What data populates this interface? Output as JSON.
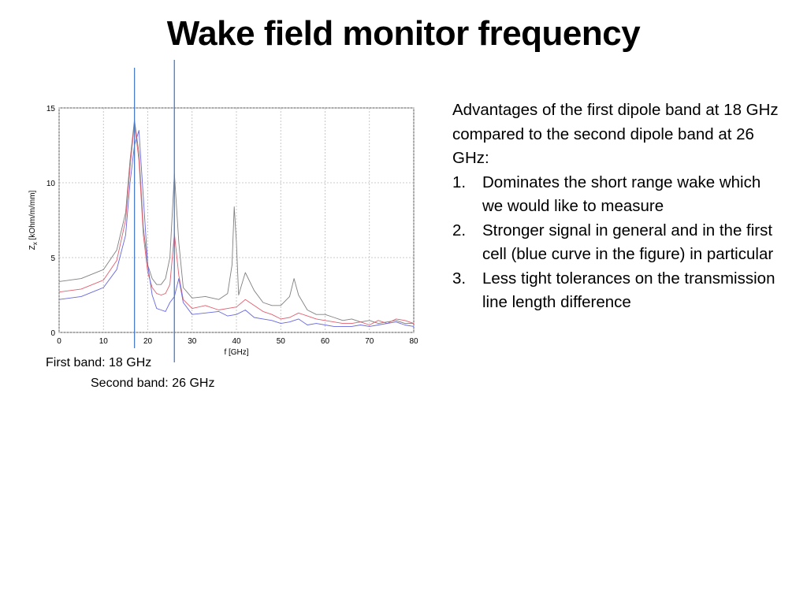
{
  "slide": {
    "title": "Wake field monitor frequency",
    "first_band_label": "First band: 18 GHz",
    "second_band_label": "Second band: 26 GHz",
    "intro": "Advantages of the first dipole band at 18 GHz compared to the second dipole band at 26 GHz:",
    "points": [
      {
        "num": "1.",
        "text": "Dominates the short range wake which we would like to measure"
      },
      {
        "num": "2.",
        "text": "Stronger signal in general and in the first cell (blue curve in the figure) in particular"
      },
      {
        "num": "3.",
        "text": "Less tight tolerances on the transmission line length difference"
      }
    ]
  },
  "chart_data": {
    "type": "line",
    "xlabel": "f [GHz]",
    "ylabel_main": "Z",
    "ylabel_sub": "x",
    "ylabel_unit": " [kOhm/m/mm]",
    "xlim": [
      0,
      80
    ],
    "ylim": [
      0,
      15
    ],
    "xticks": [
      0,
      10,
      20,
      30,
      40,
      50,
      60,
      70,
      80
    ],
    "yticks": [
      0,
      5,
      10,
      15
    ],
    "grid": true,
    "marker_lines": [
      {
        "x": 17,
        "color": "#4a7cc7"
      },
      {
        "x": 26,
        "color": "#4a7cc7"
      }
    ],
    "series": [
      {
        "color": "#808080",
        "x": [
          0,
          5,
          10,
          13,
          15,
          16,
          17,
          18,
          19,
          20,
          21,
          22,
          23,
          24,
          25,
          26,
          27,
          28,
          30,
          33,
          36,
          38,
          39,
          39.5,
          40,
          40.5,
          41,
          42,
          44,
          46,
          48,
          50,
          52,
          53,
          54,
          56,
          58,
          60,
          62,
          64,
          66,
          68,
          70,
          72,
          74,
          76,
          78,
          80
        ],
        "y": [
          3.4,
          3.6,
          4.2,
          5.5,
          8.0,
          11.5,
          14.2,
          12.0,
          7.0,
          4.5,
          3.6,
          3.2,
          3.2,
          3.6,
          5.0,
          10.6,
          6.0,
          3.0,
          2.3,
          2.4,
          2.2,
          2.6,
          4.5,
          8.4,
          6.0,
          2.5,
          3.0,
          4.0,
          2.8,
          2.0,
          1.8,
          1.8,
          2.4,
          3.6,
          2.5,
          1.5,
          1.2,
          1.2,
          1.0,
          0.8,
          0.9,
          0.7,
          0.8,
          0.6,
          0.7,
          0.8,
          0.6,
          0.6
        ]
      },
      {
        "color": "#e06070",
        "x": [
          0,
          5,
          10,
          13,
          15,
          16,
          17,
          18,
          19,
          20,
          21,
          22,
          23,
          24,
          25,
          26,
          27,
          28,
          30,
          33,
          36,
          38,
          40,
          42,
          44,
          46,
          48,
          50,
          52,
          54,
          56,
          58,
          60,
          62,
          64,
          66,
          68,
          70,
          72,
          74,
          76,
          78,
          80
        ],
        "y": [
          2.7,
          2.9,
          3.5,
          4.8,
          7.5,
          11.0,
          14.0,
          11.5,
          6.5,
          4.0,
          3.0,
          2.6,
          2.5,
          2.6,
          3.2,
          6.6,
          3.8,
          2.2,
          1.6,
          1.8,
          1.5,
          1.6,
          1.7,
          2.2,
          1.8,
          1.4,
          1.2,
          0.9,
          1.0,
          1.3,
          1.1,
          0.9,
          0.8,
          0.7,
          0.6,
          0.6,
          0.7,
          0.5,
          0.8,
          0.6,
          0.9,
          0.8,
          0.6
        ]
      },
      {
        "color": "#6868e0",
        "x": [
          0,
          5,
          10,
          13,
          15,
          16,
          17,
          18,
          19,
          20,
          21,
          22,
          23,
          24,
          25,
          26,
          27,
          28,
          30,
          33,
          36,
          38,
          40,
          42,
          44,
          46,
          48,
          50,
          52,
          54,
          56,
          58,
          60,
          62,
          64,
          66,
          68,
          70,
          72,
          74,
          76,
          78,
          80
        ],
        "y": [
          2.2,
          2.4,
          3.0,
          4.2,
          6.5,
          10.0,
          12.5,
          13.5,
          9.0,
          4.5,
          2.5,
          1.6,
          1.5,
          1.4,
          2.0,
          2.4,
          3.6,
          2.0,
          1.2,
          1.3,
          1.4,
          1.1,
          1.2,
          1.5,
          1.0,
          0.9,
          0.8,
          0.6,
          0.7,
          0.9,
          0.5,
          0.6,
          0.5,
          0.4,
          0.4,
          0.4,
          0.5,
          0.4,
          0.5,
          0.6,
          0.7,
          0.5,
          0.4
        ]
      }
    ]
  }
}
